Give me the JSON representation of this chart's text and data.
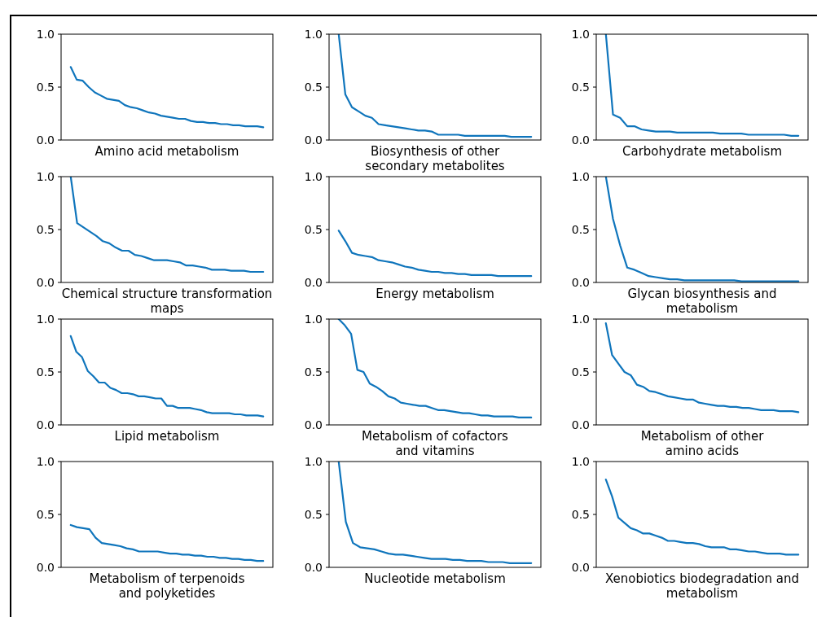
{
  "chart_data": [
    {
      "type": "line",
      "xlabel": "Amino acid metabolism",
      "categories": [
        null,
        null,
        null,
        null,
        null,
        null,
        null,
        null,
        null,
        null,
        null,
        null,
        null,
        null,
        null,
        null,
        null,
        null,
        null,
        null,
        null,
        null,
        null,
        null,
        null,
        null,
        null,
        null,
        null,
        null,
        null,
        null,
        null
      ],
      "series": [
        {
          "color": "#0f75bc",
          "values": [
            0.69,
            0.57,
            0.56,
            0.5,
            0.45,
            0.42,
            0.39,
            0.38,
            0.37,
            0.33,
            0.31,
            0.3,
            0.28,
            0.26,
            0.25,
            0.23,
            0.22,
            0.21,
            0.2,
            0.2,
            0.18,
            0.17,
            0.17,
            0.16,
            0.16,
            0.15,
            0.15,
            0.14,
            0.14,
            0.13,
            0.13,
            0.13,
            0.12
          ]
        }
      ],
      "ylim": [
        0,
        1
      ],
      "yticks": [
        {
          "value": 0,
          "label": "0.0"
        },
        {
          "value": 0.5,
          "label": "0.5"
        },
        {
          "value": 1,
          "label": "1.0"
        }
      ],
      "tick_labels": "y"
    },
    {
      "type": "line",
      "xlabel": "Biosynthesis of other\nsecondary metabolites",
      "categories": [
        null,
        null,
        null,
        null,
        null,
        null,
        null,
        null,
        null,
        null,
        null,
        null,
        null,
        null,
        null,
        null,
        null,
        null,
        null,
        null,
        null,
        null,
        null,
        null,
        null,
        null,
        null,
        null,
        null,
        null
      ],
      "series": [
        {
          "color": "#0f75bc",
          "values": [
            1.0,
            0.43,
            0.31,
            0.27,
            0.23,
            0.21,
            0.15,
            0.14,
            0.13,
            0.12,
            0.11,
            0.1,
            0.09,
            0.09,
            0.08,
            0.05,
            0.05,
            0.05,
            0.05,
            0.04,
            0.04,
            0.04,
            0.04,
            0.04,
            0.04,
            0.04,
            0.03,
            0.03,
            0.03,
            0.03
          ]
        }
      ],
      "ylim": [
        0,
        1
      ],
      "yticks": [
        {
          "value": 0,
          "label": "0.0"
        },
        {
          "value": 0.5,
          "label": "0.5"
        },
        {
          "value": 1,
          "label": "1.0"
        }
      ],
      "tick_labels": "y"
    },
    {
      "type": "line",
      "xlabel": "Carbohydrate metabolism",
      "categories": [
        null,
        null,
        null,
        null,
        null,
        null,
        null,
        null,
        null,
        null,
        null,
        null,
        null,
        null,
        null,
        null,
        null,
        null,
        null,
        null,
        null,
        null,
        null,
        null,
        null,
        null,
        null,
        null
      ],
      "series": [
        {
          "color": "#0f75bc",
          "values": [
            1.0,
            0.24,
            0.21,
            0.13,
            0.13,
            0.1,
            0.09,
            0.08,
            0.08,
            0.08,
            0.07,
            0.07,
            0.07,
            0.07,
            0.07,
            0.07,
            0.06,
            0.06,
            0.06,
            0.06,
            0.05,
            0.05,
            0.05,
            0.05,
            0.05,
            0.05,
            0.04,
            0.04
          ]
        }
      ],
      "ylim": [
        0,
        1
      ],
      "yticks": [
        {
          "value": 0,
          "label": "0.0"
        },
        {
          "value": 0.5,
          "label": "0.5"
        },
        {
          "value": 1,
          "label": "1.0"
        }
      ],
      "tick_labels": "y"
    },
    {
      "type": "line",
      "xlabel": "Chemical structure transformation\nmaps",
      "categories": [
        null,
        null,
        null,
        null,
        null,
        null,
        null,
        null,
        null,
        null,
        null,
        null,
        null,
        null,
        null,
        null,
        null,
        null,
        null,
        null,
        null,
        null,
        null,
        null,
        null,
        null,
        null,
        null,
        null,
        null,
        null
      ],
      "series": [
        {
          "color": "#0f75bc",
          "values": [
            1.0,
            0.56,
            0.52,
            0.48,
            0.44,
            0.39,
            0.37,
            0.33,
            0.3,
            0.3,
            0.26,
            0.25,
            0.23,
            0.21,
            0.21,
            0.21,
            0.2,
            0.19,
            0.16,
            0.16,
            0.15,
            0.14,
            0.12,
            0.12,
            0.12,
            0.11,
            0.11,
            0.11,
            0.1,
            0.1,
            0.1
          ]
        }
      ],
      "ylim": [
        0,
        1
      ],
      "yticks": [
        {
          "value": 0,
          "label": "0.0"
        },
        {
          "value": 0.5,
          "label": "0.5"
        },
        {
          "value": 1,
          "label": "1.0"
        }
      ],
      "tick_labels": "y"
    },
    {
      "type": "line",
      "xlabel": "Energy metabolism",
      "categories": [
        null,
        null,
        null,
        null,
        null,
        null,
        null,
        null,
        null,
        null,
        null,
        null,
        null,
        null,
        null,
        null,
        null,
        null,
        null,
        null,
        null,
        null,
        null,
        null,
        null,
        null,
        null,
        null,
        null,
        null
      ],
      "series": [
        {
          "color": "#0f75bc",
          "values": [
            0.49,
            0.39,
            0.28,
            0.26,
            0.25,
            0.24,
            0.21,
            0.2,
            0.19,
            0.17,
            0.15,
            0.14,
            0.12,
            0.11,
            0.1,
            0.1,
            0.09,
            0.09,
            0.08,
            0.08,
            0.07,
            0.07,
            0.07,
            0.07,
            0.06,
            0.06,
            0.06,
            0.06,
            0.06,
            0.06
          ]
        }
      ],
      "ylim": [
        0,
        1
      ],
      "yticks": [
        {
          "value": 0,
          "label": "0.0"
        },
        {
          "value": 0.5,
          "label": "0.5"
        },
        {
          "value": 1,
          "label": "1.0"
        }
      ],
      "tick_labels": "y"
    },
    {
      "type": "line",
      "xlabel": "Glycan biosynthesis and\nmetabolism",
      "categories": [
        null,
        null,
        null,
        null,
        null,
        null,
        null,
        null,
        null,
        null,
        null,
        null,
        null,
        null,
        null,
        null,
        null,
        null,
        null,
        null,
        null,
        null,
        null,
        null,
        null,
        null,
        null,
        null
      ],
      "series": [
        {
          "color": "#0f75bc",
          "values": [
            1.0,
            0.6,
            0.35,
            0.14,
            0.12,
            0.09,
            0.06,
            0.05,
            0.04,
            0.03,
            0.03,
            0.02,
            0.02,
            0.02,
            0.02,
            0.02,
            0.02,
            0.02,
            0.02,
            0.01,
            0.01,
            0.01,
            0.01,
            0.01,
            0.01,
            0.01,
            0.01,
            0.01
          ]
        }
      ],
      "ylim": [
        0,
        1
      ],
      "yticks": [
        {
          "value": 0,
          "label": "0.0"
        },
        {
          "value": 0.5,
          "label": "0.5"
        },
        {
          "value": 1,
          "label": "1.0"
        }
      ],
      "tick_labels": "y"
    },
    {
      "type": "line",
      "xlabel": "Lipid metabolism",
      "categories": [
        null,
        null,
        null,
        null,
        null,
        null,
        null,
        null,
        null,
        null,
        null,
        null,
        null,
        null,
        null,
        null,
        null,
        null,
        null,
        null,
        null,
        null,
        null,
        null,
        null,
        null,
        null,
        null,
        null,
        null,
        null,
        null,
        null,
        null,
        null
      ],
      "series": [
        {
          "color": "#0f75bc",
          "values": [
            0.84,
            0.69,
            0.64,
            0.51,
            0.46,
            0.4,
            0.4,
            0.35,
            0.33,
            0.3,
            0.3,
            0.29,
            0.27,
            0.27,
            0.26,
            0.25,
            0.25,
            0.18,
            0.18,
            0.16,
            0.16,
            0.16,
            0.15,
            0.14,
            0.12,
            0.11,
            0.11,
            0.11,
            0.11,
            0.1,
            0.1,
            0.09,
            0.09,
            0.09,
            0.08
          ]
        }
      ],
      "ylim": [
        0,
        1
      ],
      "yticks": [
        {
          "value": 0,
          "label": "0.0"
        },
        {
          "value": 0.5,
          "label": "0.5"
        },
        {
          "value": 1,
          "label": "1.0"
        }
      ],
      "tick_labels": "y"
    },
    {
      "type": "line",
      "xlabel": "Metabolism of cofactors\nand vitamins",
      "categories": [
        null,
        null,
        null,
        null,
        null,
        null,
        null,
        null,
        null,
        null,
        null,
        null,
        null,
        null,
        null,
        null,
        null,
        null,
        null,
        null,
        null,
        null,
        null,
        null,
        null,
        null,
        null,
        null,
        null,
        null,
        null,
        null
      ],
      "series": [
        {
          "color": "#0f75bc",
          "values": [
            1.0,
            0.94,
            0.86,
            0.52,
            0.5,
            0.39,
            0.36,
            0.32,
            0.27,
            0.25,
            0.21,
            0.2,
            0.19,
            0.18,
            0.18,
            0.16,
            0.14,
            0.14,
            0.13,
            0.12,
            0.11,
            0.11,
            0.1,
            0.09,
            0.09,
            0.08,
            0.08,
            0.08,
            0.08,
            0.07,
            0.07,
            0.07
          ]
        }
      ],
      "ylim": [
        0,
        1
      ],
      "yticks": [
        {
          "value": 0,
          "label": "0.0"
        },
        {
          "value": 0.5,
          "label": "0.5"
        },
        {
          "value": 1,
          "label": "1.0"
        }
      ],
      "tick_labels": "y"
    },
    {
      "type": "line",
      "xlabel": "Metabolism of other\namino acids",
      "categories": [
        null,
        null,
        null,
        null,
        null,
        null,
        null,
        null,
        null,
        null,
        null,
        null,
        null,
        null,
        null,
        null,
        null,
        null,
        null,
        null,
        null,
        null,
        null,
        null,
        null,
        null,
        null,
        null,
        null,
        null,
        null,
        null
      ],
      "series": [
        {
          "color": "#0f75bc",
          "values": [
            0.96,
            0.66,
            0.58,
            0.5,
            0.47,
            0.38,
            0.36,
            0.32,
            0.31,
            0.29,
            0.27,
            0.26,
            0.25,
            0.24,
            0.24,
            0.21,
            0.2,
            0.19,
            0.18,
            0.18,
            0.17,
            0.17,
            0.16,
            0.16,
            0.15,
            0.14,
            0.14,
            0.14,
            0.13,
            0.13,
            0.13,
            0.12
          ]
        }
      ],
      "ylim": [
        0,
        1
      ],
      "yticks": [
        {
          "value": 0,
          "label": "0.0"
        },
        {
          "value": 0.5,
          "label": "0.5"
        },
        {
          "value": 1,
          "label": "1.0"
        }
      ],
      "tick_labels": "y"
    },
    {
      "type": "line",
      "xlabel": "Metabolism of terpenoids\nand polyketides",
      "categories": [
        null,
        null,
        null,
        null,
        null,
        null,
        null,
        null,
        null,
        null,
        null,
        null,
        null,
        null,
        null,
        null,
        null,
        null,
        null,
        null,
        null,
        null,
        null,
        null,
        null,
        null,
        null,
        null,
        null,
        null,
        null,
        null
      ],
      "series": [
        {
          "color": "#0f75bc",
          "values": [
            0.4,
            0.38,
            0.37,
            0.36,
            0.28,
            0.23,
            0.22,
            0.21,
            0.2,
            0.18,
            0.17,
            0.15,
            0.15,
            0.15,
            0.15,
            0.14,
            0.13,
            0.13,
            0.12,
            0.12,
            0.11,
            0.11,
            0.1,
            0.1,
            0.09,
            0.09,
            0.08,
            0.08,
            0.07,
            0.07,
            0.06,
            0.06
          ]
        }
      ],
      "ylim": [
        0,
        1
      ],
      "yticks": [
        {
          "value": 0,
          "label": "0.0"
        },
        {
          "value": 0.5,
          "label": "0.5"
        },
        {
          "value": 1,
          "label": "1.0"
        }
      ],
      "tick_labels": "y"
    },
    {
      "type": "line",
      "xlabel": "Nucleotide metabolism",
      "categories": [
        null,
        null,
        null,
        null,
        null,
        null,
        null,
        null,
        null,
        null,
        null,
        null,
        null,
        null,
        null,
        null,
        null,
        null,
        null,
        null,
        null,
        null,
        null,
        null,
        null,
        null,
        null,
        null
      ],
      "series": [
        {
          "color": "#0f75bc",
          "values": [
            1.0,
            0.43,
            0.23,
            0.19,
            0.18,
            0.17,
            0.15,
            0.13,
            0.12,
            0.12,
            0.11,
            0.1,
            0.09,
            0.08,
            0.08,
            0.08,
            0.07,
            0.07,
            0.06,
            0.06,
            0.06,
            0.05,
            0.05,
            0.05,
            0.04,
            0.04,
            0.04,
            0.04
          ]
        }
      ],
      "ylim": [
        0,
        1
      ],
      "yticks": [
        {
          "value": 0,
          "label": "0.0"
        },
        {
          "value": 0.5,
          "label": "0.5"
        },
        {
          "value": 1,
          "label": "1.0"
        }
      ],
      "tick_labels": "y"
    },
    {
      "type": "line",
      "xlabel": "Xenobiotics biodegradation and\nmetabolism",
      "categories": [
        null,
        null,
        null,
        null,
        null,
        null,
        null,
        null,
        null,
        null,
        null,
        null,
        null,
        null,
        null,
        null,
        null,
        null,
        null,
        null,
        null,
        null,
        null,
        null,
        null,
        null,
        null,
        null,
        null,
        null,
        null,
        null
      ],
      "series": [
        {
          "color": "#0f75bc",
          "values": [
            0.83,
            0.67,
            0.47,
            0.42,
            0.37,
            0.35,
            0.32,
            0.32,
            0.3,
            0.28,
            0.25,
            0.25,
            0.24,
            0.23,
            0.23,
            0.22,
            0.2,
            0.19,
            0.19,
            0.19,
            0.17,
            0.17,
            0.16,
            0.15,
            0.15,
            0.14,
            0.13,
            0.13,
            0.13,
            0.12,
            0.12,
            0.12
          ]
        }
      ],
      "ylim": [
        0,
        1
      ],
      "yticks": [
        {
          "value": 0,
          "label": "0.0"
        },
        {
          "value": 0.5,
          "label": "0.5"
        },
        {
          "value": 1,
          "label": "1.0"
        }
      ],
      "tick_labels": "y"
    }
  ]
}
